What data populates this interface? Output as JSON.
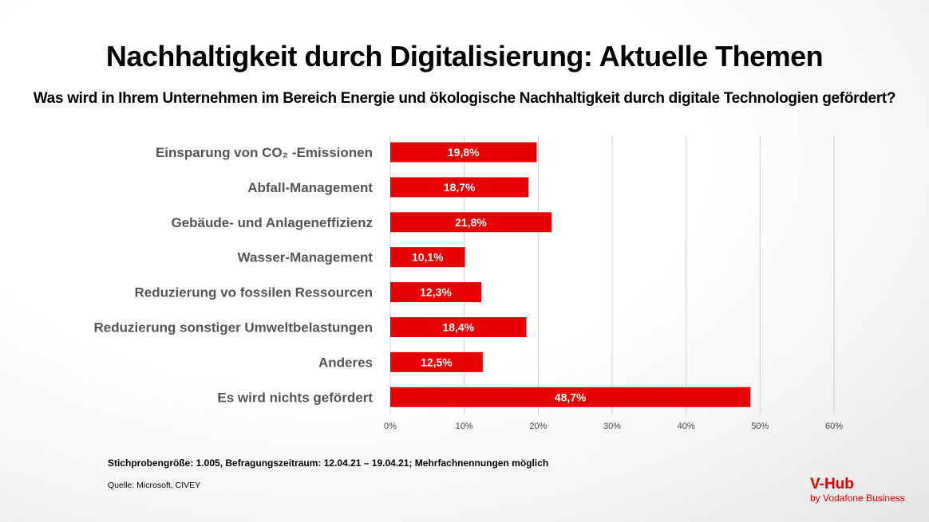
{
  "header": {
    "title": "Nachhaltigkeit durch Digitalisierung: Aktuelle Themen",
    "subtitle": "Was wird in Ihrem Unternehmen im Bereich Energie und ökologische Nachhaltigkeit durch digitale Technologien gefördert?"
  },
  "chart_data": {
    "type": "bar",
    "orientation": "horizontal",
    "title": "Nachhaltigkeit durch Digitalisierung: Aktuelle Themen",
    "subtitle": "Was wird in Ihrem Unternehmen im Bereich Energie und ökologische Nachhaltigkeit durch digitale Technologien gefördert?",
    "categories": [
      "Einsparung von CO₂ -Emissionen",
      "Abfall-Management",
      "Gebäude- und Anlageneffizienz",
      "Wasser-Management",
      "Reduzierung vo fossilen Ressourcen",
      "Reduzierung sonstiger Umweltbelastungen",
      "Anderes",
      "Es wird nichts gefördert"
    ],
    "values": [
      19.8,
      18.7,
      21.8,
      10.1,
      12.3,
      18.4,
      12.5,
      48.7
    ],
    "value_labels": [
      "19,8%",
      "18,7%",
      "21,8%",
      "10,1%",
      "12,3%",
      "18,4%",
      "12,5%",
      "48,7%"
    ],
    "xlabel": "",
    "ylabel": "",
    "xlim": [
      0,
      60
    ],
    "x_ticks": [
      0,
      10,
      20,
      30,
      40,
      50,
      60
    ],
    "x_tick_labels": [
      "0%",
      "10%",
      "20%",
      "30%",
      "40%",
      "50%",
      "60%"
    ],
    "grid": true,
    "legend": "none",
    "bar_color": "#e60000"
  },
  "footer": {
    "note": "Stichprobengröße: 1.005, Befragungszeitraum: 12.04.21 – 19.04.21; Mehrfachnennungen möglich",
    "source": "Quelle: Microsoft, CIVEY"
  },
  "logo": {
    "main": "V-Hub",
    "sub": "by Vodafone Business",
    "color": "#e60000"
  }
}
